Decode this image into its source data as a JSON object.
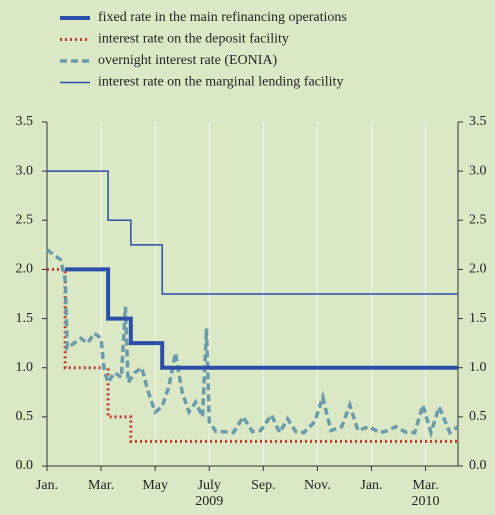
{
  "chart_data": {
    "type": "line",
    "xlim": [
      0,
      15.2
    ],
    "ylim": [
      0,
      3.5
    ],
    "yticks": [
      {
        "value": 0,
        "label": "0.0"
      },
      0.5,
      {
        "value": 1,
        "label": "1.0"
      },
      1.5,
      {
        "value": 2,
        "label": "2.0"
      },
      2.5,
      {
        "value": 3,
        "label": "3.0"
      },
      3.5
    ],
    "xticks": [
      {
        "value": 0,
        "label": "Jan."
      },
      {
        "value": 2,
        "label": "Mar."
      },
      {
        "value": 4,
        "label": "May"
      },
      {
        "value": 6,
        "label": "July"
      },
      {
        "value": 8,
        "label": "Sep."
      },
      {
        "value": 10,
        "label": "Nov."
      },
      {
        "value": 12,
        "label": "Jan."
      },
      {
        "value": 14,
        "label": "Mar."
      }
    ],
    "x_year_labels": [
      {
        "value": 6,
        "label": "2009"
      },
      {
        "value": 14,
        "label": "2010"
      }
    ],
    "grid": true,
    "legend": "top",
    "series": [
      {
        "name": "fixed rate in the main refinancing operations",
        "color": "#2b4fa8",
        "style": "solid",
        "width": 4,
        "x": [
          0.67,
          2.26,
          2.26,
          3.1,
          3.1,
          4.26,
          4.26,
          15.2
        ],
        "values": [
          2,
          2,
          1.5,
          1.5,
          1.25,
          1.25,
          1,
          1
        ]
      },
      {
        "name": "interest rate on the deposit facility",
        "color": "#c0392b",
        "style": "dotted",
        "width": 3,
        "x": [
          0,
          0.67,
          0.67,
          2.26,
          2.26,
          3.1,
          3.1,
          15.2
        ],
        "values": [
          2,
          2,
          1,
          1,
          0.5,
          0.5,
          0.25,
          0.25
        ]
      },
      {
        "name": "overnight interest rate (EONIA)",
        "color": "#6b9ba9",
        "style": "dashed",
        "width": 3.5,
        "x": [
          0,
          0.25,
          0.5,
          0.67,
          0.75,
          1,
          1.25,
          1.5,
          1.75,
          2,
          2.1,
          2.25,
          2.5,
          2.75,
          2.9,
          3,
          3.25,
          3.5,
          3.75,
          4,
          4.25,
          4.5,
          4.75,
          5,
          5.25,
          5.5,
          5.75,
          5.9,
          6,
          6.25,
          6.5,
          6.9,
          7.25,
          7.6,
          7.9,
          8.3,
          8.6,
          8.9,
          9.2,
          9.5,
          9.9,
          10.2,
          10.5,
          10.9,
          11.2,
          11.5,
          11.9,
          12.3,
          12.6,
          12.9,
          13.3,
          13.6,
          13.9,
          14.2,
          14.5,
          14.9,
          15.2
        ],
        "values": [
          2.2,
          2.15,
          2.1,
          1.9,
          1.2,
          1.25,
          1.3,
          1.25,
          1.35,
          1.3,
          1,
          0.85,
          0.95,
          0.9,
          1.62,
          0.85,
          0.95,
          1,
          0.75,
          0.55,
          0.6,
          0.8,
          1.15,
          0.75,
          0.55,
          0.65,
          0.5,
          1.4,
          0.45,
          0.35,
          0.35,
          0.34,
          0.5,
          0.35,
          0.36,
          0.52,
          0.34,
          0.48,
          0.35,
          0.34,
          0.45,
          0.7,
          0.36,
          0.4,
          0.62,
          0.36,
          0.4,
          0.34,
          0.36,
          0.4,
          0.34,
          0.34,
          0.62,
          0.34,
          0.6,
          0.34,
          0.4
        ]
      },
      {
        "name": "interest rate on the marginal lending facility",
        "color": "#2b4fa8",
        "style": "solid",
        "width": 1.5,
        "x": [
          0,
          2.26,
          2.26,
          3.1,
          3.1,
          4.26,
          4.26,
          15.2
        ],
        "values": [
          3,
          3,
          2.5,
          2.5,
          2.25,
          2.25,
          1.75,
          1.75
        ]
      }
    ]
  }
}
